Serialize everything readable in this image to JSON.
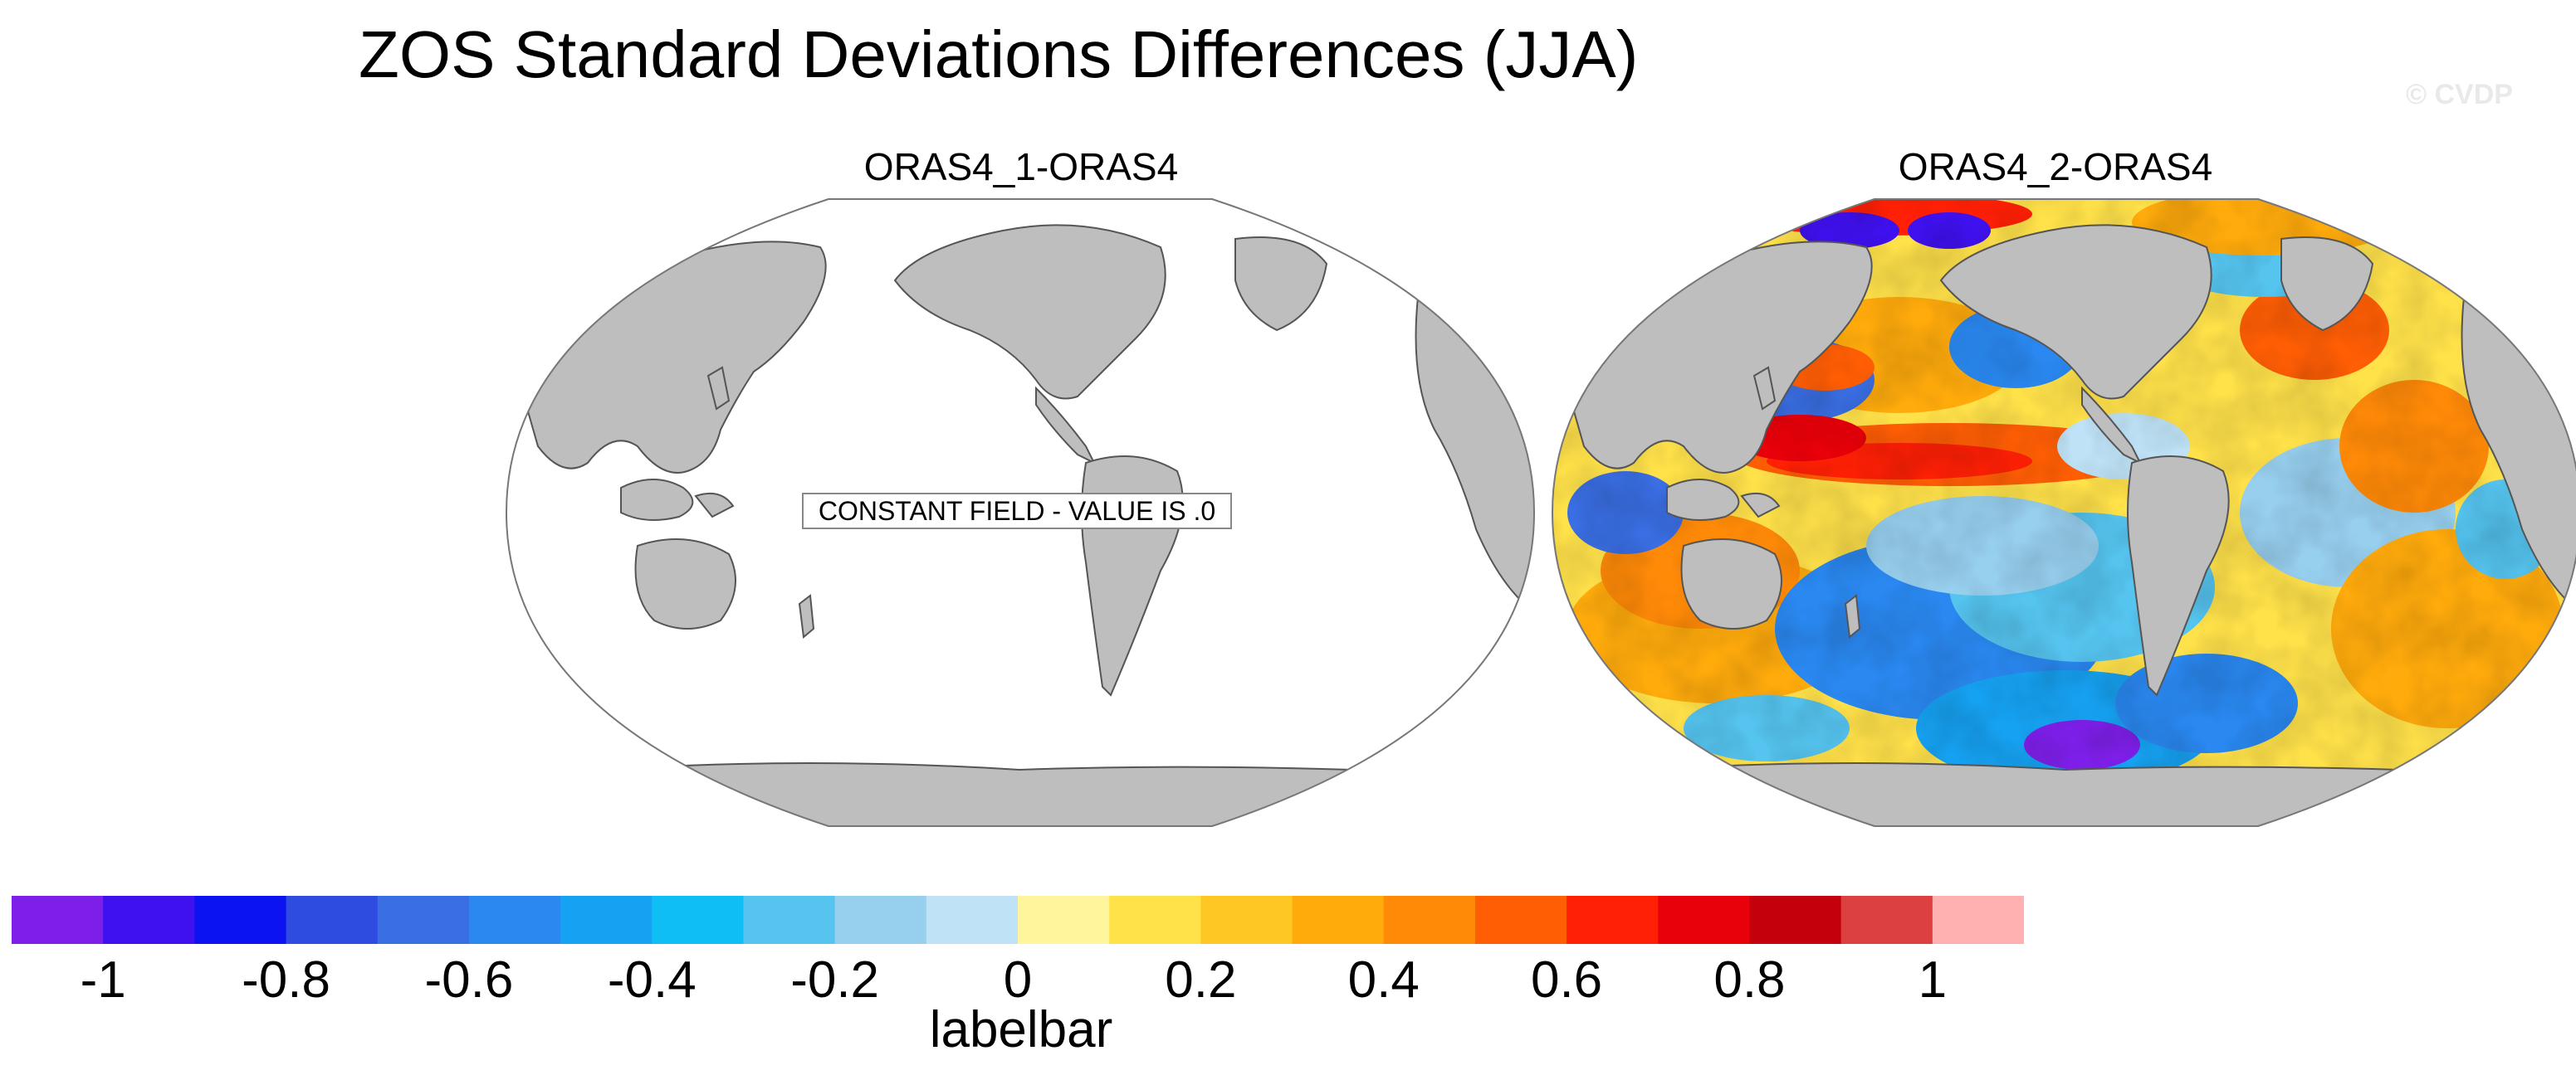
{
  "title": "ZOS Standard Deviations Differences (JJA)",
  "watermark": "© CVDP",
  "panels": [
    {
      "title": "ORAS4_1-ORAS4",
      "note": "CONSTANT FIELD - VALUE IS .0"
    },
    {
      "title": "ORAS4_2-ORAS4"
    }
  ],
  "colors": {
    "land": "#bebebe",
    "ocean_blank": "#ffffff",
    "coast": "#555555"
  },
  "colorbar": {
    "title": "labelbar",
    "colors": [
      "#7d1fe8",
      "#3f11ee",
      "#0b13f0",
      "#2f4ce0",
      "#3a6ee3",
      "#2a88f0",
      "#16a2f2",
      "#0fbef4",
      "#55c4ef",
      "#97cfee",
      "#bfe2f6",
      "#fff59d",
      "#ffe14a",
      "#ffc724",
      "#ffab0c",
      "#ff8a08",
      "#ff5e05",
      "#ff2005",
      "#e8000a",
      "#c4000c",
      "#dc4040",
      "#ffb0b0"
    ],
    "tick_labels": [
      "-1",
      "-0.8",
      "-0.6",
      "-0.4",
      "-0.2",
      "0",
      "0.2",
      "0.4",
      "0.6",
      "0.8",
      "1"
    ]
  }
}
